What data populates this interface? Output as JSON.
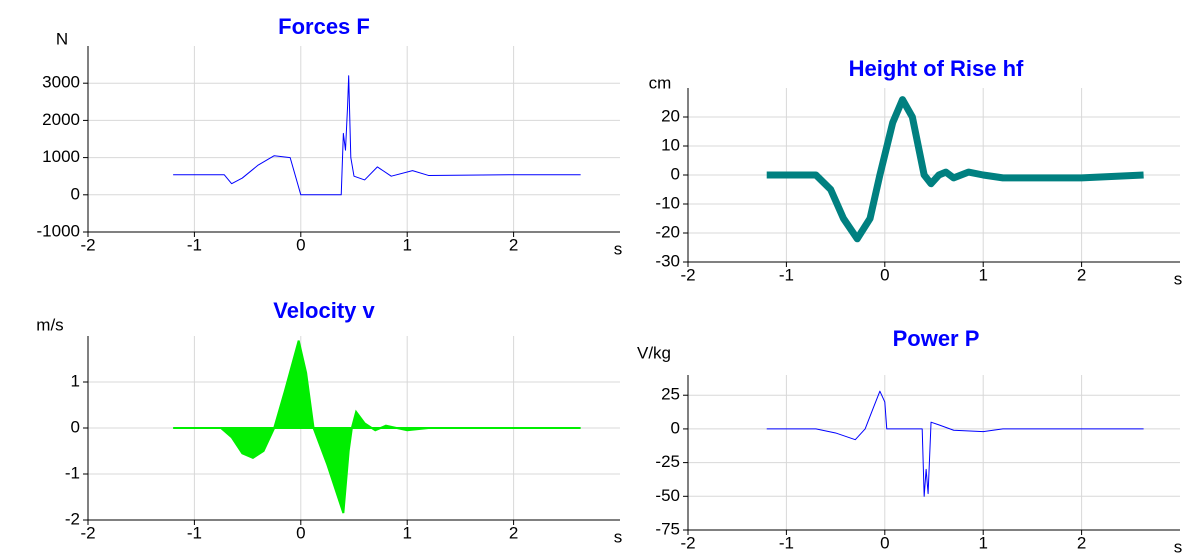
{
  "chart_data": [
    {
      "type": "line",
      "title": "Forces F",
      "y_label": "N",
      "x_label": "s",
      "color": "#0000ff",
      "line_width": 1,
      "grid": true,
      "xlim": [
        -2,
        3
      ],
      "xticks": [
        -2,
        -1,
        0,
        1,
        2
      ],
      "ylim": [
        -1000,
        4000
      ],
      "yticks": [
        -1000,
        0,
        1000,
        2000,
        3000
      ],
      "x": [
        -1.2,
        -0.72,
        -0.65,
        -0.55,
        -0.4,
        -0.25,
        -0.1,
        -0.03,
        0.0,
        0.38,
        0.4,
        0.42,
        0.44,
        0.45,
        0.47,
        0.5,
        0.6,
        0.72,
        0.85,
        1.05,
        1.2,
        2.0,
        2.63
      ],
      "values": [
        540,
        540,
        300,
        450,
        800,
        1050,
        1000,
        300,
        0,
        0,
        1650,
        1200,
        2400,
        3200,
        1000,
        500,
        400,
        750,
        500,
        650,
        520,
        540,
        540
      ]
    },
    {
      "type": "line",
      "title": "Height of Rise hf",
      "y_label": "cm",
      "x_label": "s",
      "color": "#008080",
      "line_width": 7,
      "grid": true,
      "xlim": [
        -2,
        3
      ],
      "xticks": [
        -2,
        -1,
        0,
        1,
        2
      ],
      "ylim": [
        -30,
        30
      ],
      "yticks": [
        -30,
        -20,
        -10,
        0,
        10,
        20
      ],
      "x": [
        -1.2,
        -0.7,
        -0.55,
        -0.42,
        -0.28,
        -0.15,
        -0.05,
        0.08,
        0.18,
        0.28,
        0.4,
        0.47,
        0.55,
        0.62,
        0.7,
        0.85,
        1.0,
        1.2,
        2.0,
        2.63
      ],
      "values": [
        0,
        0,
        -5,
        -15,
        -22,
        -15,
        0,
        18,
        26,
        20,
        0,
        -3,
        0,
        1,
        -1,
        1,
        0,
        -1,
        -1,
        0
      ]
    },
    {
      "type": "area",
      "title": "Velocity v",
      "y_label": "m/s",
      "x_label": "s",
      "color": "#00ee00",
      "grid": true,
      "xlim": [
        -2,
        3
      ],
      "xticks": [
        -2,
        -1,
        0,
        1,
        2
      ],
      "ylim": [
        -2,
        2
      ],
      "yticks": [
        -2,
        -1,
        0,
        1
      ],
      "x": [
        -1.2,
        -0.75,
        -0.65,
        -0.55,
        -0.45,
        -0.35,
        -0.25,
        -0.15,
        -0.02,
        0.05,
        0.12,
        0.25,
        0.4,
        0.45,
        0.48,
        0.52,
        0.6,
        0.7,
        0.8,
        1.0,
        1.2,
        2.63
      ],
      "values": [
        0,
        0,
        -0.2,
        -0.55,
        -0.65,
        -0.5,
        0,
        0.8,
        1.9,
        1.2,
        0,
        -0.8,
        -1.85,
        -0.5,
        0,
        0.35,
        0.1,
        -0.05,
        0.05,
        -0.05,
        0,
        0
      ]
    },
    {
      "type": "line",
      "title": "Power P",
      "y_label": "V/kg",
      "x_label": "s",
      "color": "#0000ff",
      "line_width": 1,
      "grid": true,
      "xlim": [
        -2,
        3
      ],
      "xticks": [
        -2,
        -1,
        0,
        1,
        2
      ],
      "ylim": [
        -75,
        40
      ],
      "yticks": [
        -75,
        -50,
        -25,
        0,
        25
      ],
      "x": [
        -1.2,
        -0.7,
        -0.5,
        -0.3,
        -0.2,
        -0.12,
        -0.05,
        0.0,
        0.02,
        0.38,
        0.4,
        0.42,
        0.44,
        0.47,
        0.55,
        0.7,
        1.0,
        1.2,
        2.63
      ],
      "values": [
        0,
        0,
        -3,
        -8,
        0,
        15,
        28,
        20,
        0,
        0,
        -50,
        -30,
        -48,
        5,
        3,
        -1,
        -2,
        0,
        0
      ]
    }
  ]
}
